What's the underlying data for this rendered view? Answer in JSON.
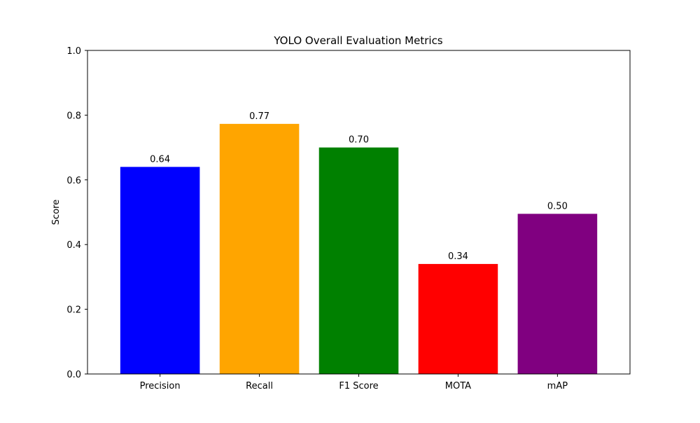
{
  "chart_data": {
    "type": "bar",
    "title": "YOLO Overall Evaluation Metrics",
    "xlabel": "",
    "ylabel": "Score",
    "categories": [
      "Precision",
      "Recall",
      "F1 Score",
      "MOTA",
      "mAP"
    ],
    "values": [
      0.64,
      0.773,
      0.7,
      0.34,
      0.495
    ],
    "data_labels": [
      "0.64",
      "0.77",
      "0.70",
      "0.34",
      "0.50"
    ],
    "colors": [
      "#0000ff",
      "#ffa500",
      "#008000",
      "#ff0000",
      "#800080"
    ],
    "ylim": [
      0,
      1.0
    ],
    "yticks": [
      "0.0",
      "0.2",
      "0.4",
      "0.6",
      "0.8",
      "1.0"
    ],
    "grid": false,
    "legend": "none"
  }
}
